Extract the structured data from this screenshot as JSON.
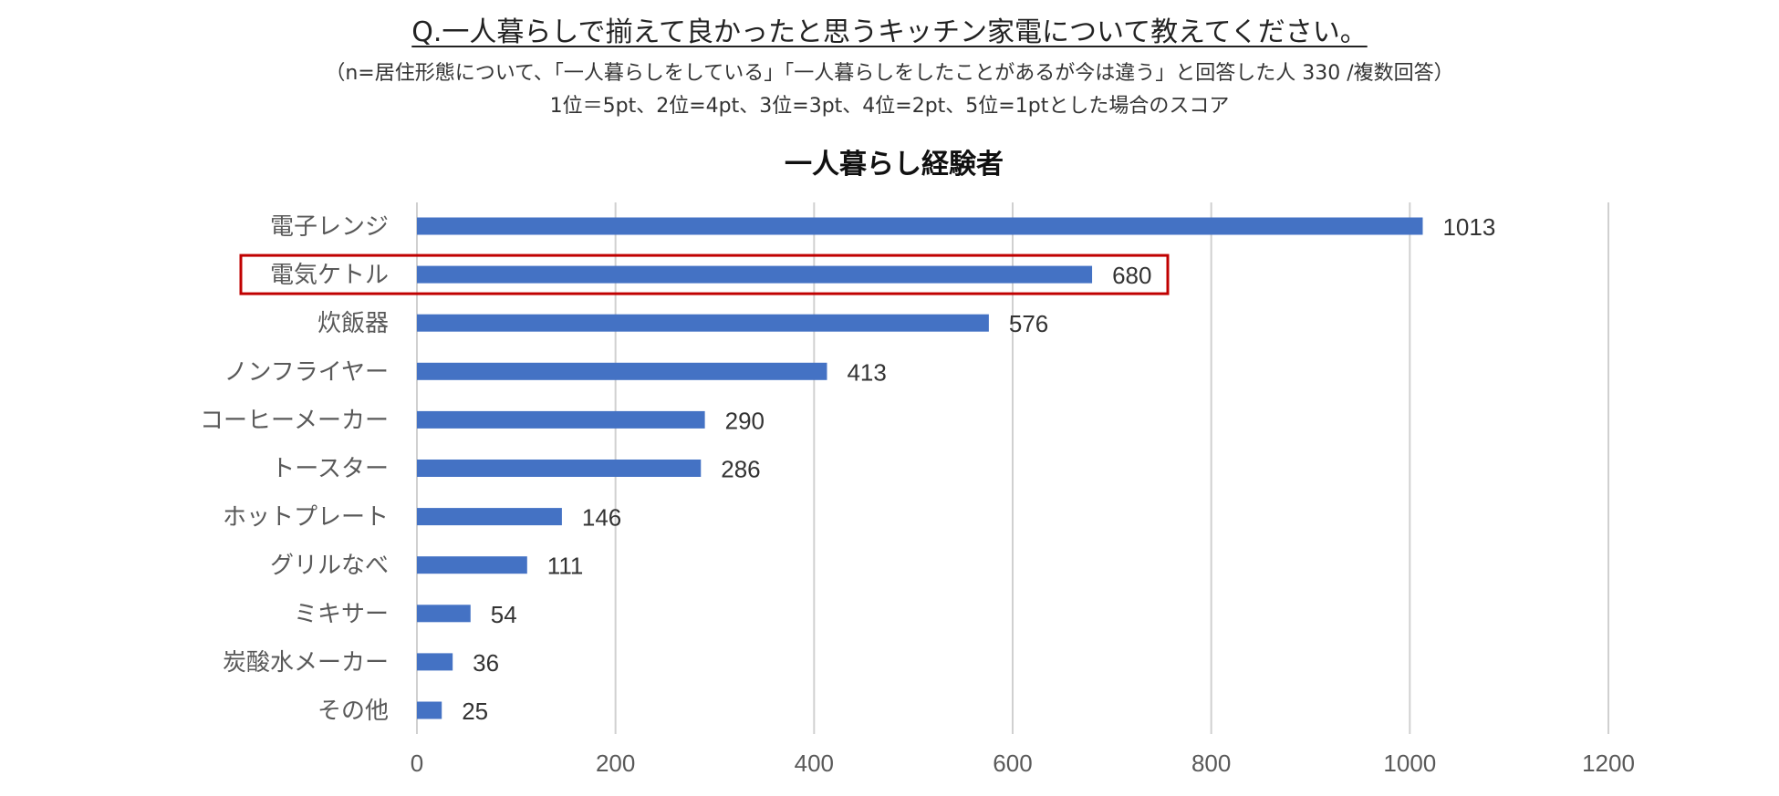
{
  "question": "Q.一人暮らしで揃えて良かったと思うキッチン家電について教えてください。",
  "sample_note": "（n=居住形態について、「一人暮らしをしている」「一人暮らしをしたことがあるが今は違う」と回答した人 330 /複数回答）",
  "scoring_note": "1位＝5pt、2位=4pt、3位=3pt、4位=2pt、5位=1ptとした場合のスコア",
  "chart_data": {
    "type": "bar",
    "orientation": "horizontal",
    "title": "一人暮らし経験者",
    "categories": [
      "電子レンジ",
      "電気ケトル",
      "炊飯器",
      "ノンフライヤー",
      "コーヒーメーカー",
      "トースター",
      "ホットプレート",
      "グリルなべ",
      "ミキサー",
      "炭酸水メーカー",
      "その他"
    ],
    "values": [
      1013,
      680,
      576,
      413,
      290,
      286,
      146,
      111,
      54,
      36,
      25
    ],
    "xlim": [
      0,
      1200
    ],
    "xticks": [
      0,
      200,
      400,
      600,
      800,
      1000,
      1200
    ],
    "grid": true,
    "highlighted_category": "電気ケトル",
    "bar_color": "#4472C4",
    "highlight_color": "#C00000"
  }
}
